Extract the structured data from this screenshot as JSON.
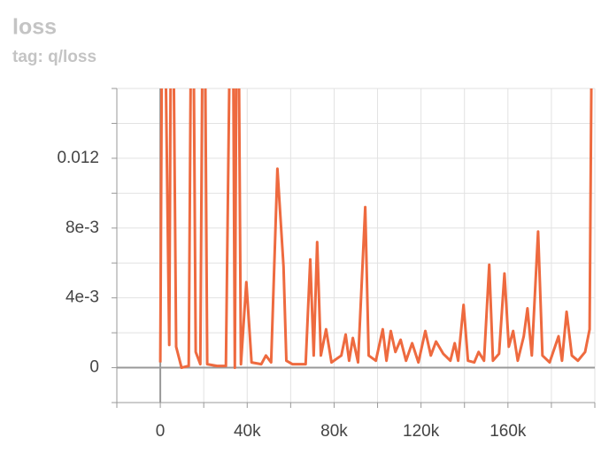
{
  "chart_data": {
    "type": "line",
    "title": "loss",
    "subtitle": "tag: q/loss",
    "xlim": [
      -20000,
      200000
    ],
    "ylim": [
      -0.002,
      0.016
    ],
    "xticks": [
      0,
      {
        "value": 40000,
        "label": "40k"
      },
      {
        "value": 80000,
        "label": "80k"
      },
      {
        "value": 120000,
        "label": "120k"
      },
      {
        "value": 160000,
        "label": "160k"
      }
    ],
    "yticks": [
      0,
      {
        "value": 0.004,
        "label": "4e-3"
      },
      {
        "value": 0.008,
        "label": "8e-3"
      },
      0.012
    ],
    "xgrid": [
      -20000,
      0,
      20000,
      40000,
      60000,
      80000,
      100000,
      120000,
      140000,
      160000,
      180000,
      200000
    ],
    "ygrid": [
      -0.002,
      0,
      0.002,
      0.004,
      0.006,
      0.008,
      0.01,
      0.012,
      0.014,
      0.016
    ],
    "grid": true,
    "series": [
      {
        "color": "#ee6a3f",
        "x": [
          0,
          1200,
          4100,
          5300,
          7300,
          9800,
          13100,
          14700,
          16300,
          18400,
          20000,
          21600,
          26100,
          30200,
          33100,
          34300,
          35500,
          37100,
          39600,
          42000,
          46500,
          48600,
          51000,
          53900,
          56700,
          58000,
          60800,
          66900,
          69000,
          70600,
          72200,
          73900,
          76300,
          78800,
          83300,
          85300,
          86900,
          88600,
          91000,
          94300,
          95900,
          99200,
          102400,
          104100,
          106100,
          108200,
          110600,
          113100,
          115900,
          118800,
          122000,
          124500,
          126900,
          130200,
          133500,
          135500,
          137100,
          139600,
          141600,
          144500,
          146500,
          149000,
          151400,
          153100,
          155900,
          158400,
          160400,
          162400,
          164500,
          167300,
          169000,
          171000,
          173900,
          175900,
          179200,
          183300,
          184900,
          187000,
          189400,
          192200,
          195500,
          197600,
          199200
        ],
        "values": [
          0.0003,
          0.03,
          0.0013,
          0.03,
          0.0012,
          0.0,
          0.0001,
          0.03,
          0.0009,
          0.0002,
          0.03,
          0.0002,
          0.0001,
          0.0001,
          0.03,
          0.0,
          0.03,
          0.0002,
          0.0049,
          0.0003,
          0.0002,
          0.0007,
          0.0003,
          0.0114,
          0.0058,
          0.0004,
          0.0002,
          0.0002,
          0.0062,
          0.0007,
          0.0072,
          0.0007,
          0.0022,
          0.0003,
          0.0007,
          0.0019,
          0.0004,
          0.0017,
          0.0003,
          0.0092,
          0.0007,
          0.0004,
          0.0022,
          0.0004,
          0.0021,
          0.0009,
          0.0016,
          0.0004,
          0.0014,
          0.0003,
          0.0021,
          0.0007,
          0.0015,
          0.0008,
          0.0004,
          0.0014,
          0.0004,
          0.0036,
          0.0004,
          0.0003,
          0.0009,
          0.0004,
          0.0059,
          0.0004,
          0.0008,
          0.0054,
          0.0012,
          0.0021,
          0.0004,
          0.0018,
          0.0034,
          0.0007,
          0.0078,
          0.0007,
          0.0003,
          0.0018,
          0.0004,
          0.0032,
          0.0007,
          0.0004,
          0.0009,
          0.0022,
          0.03
        ]
      }
    ]
  }
}
